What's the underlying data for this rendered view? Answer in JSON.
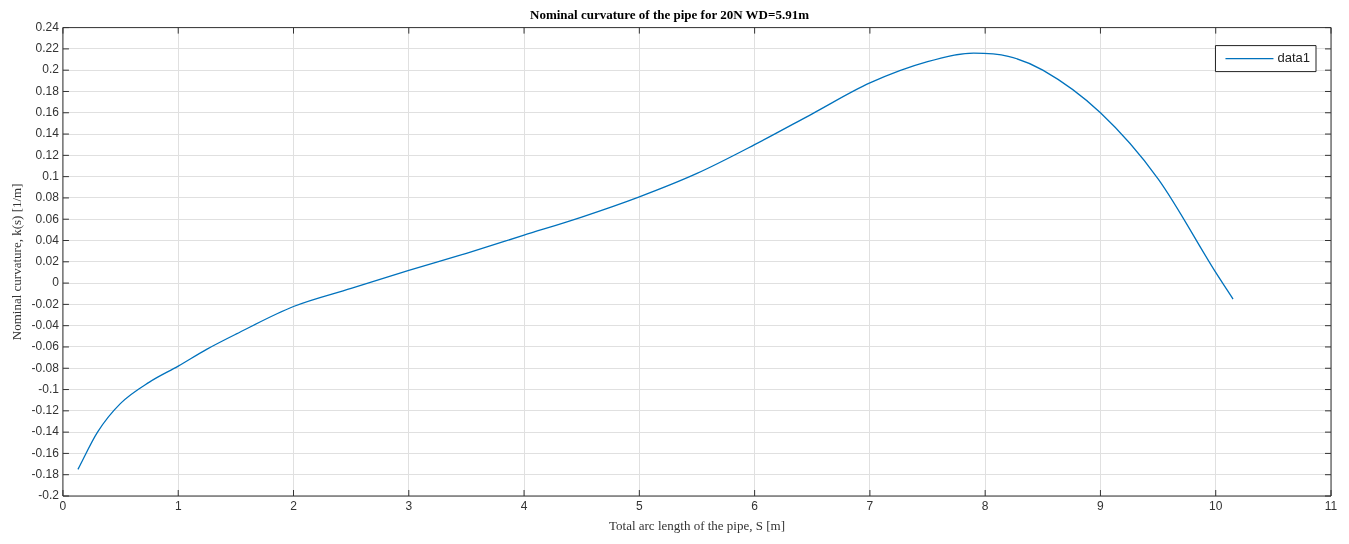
{
  "chart_data": {
    "type": "line",
    "title": "Nominal curvature of the pipe for 20N WD=5.91m",
    "xlabel": "Total arc length of the pipe, S [m]",
    "ylabel": "Nominal curvature, k(s) [1/m]",
    "x": [
      0.13,
      0.3,
      0.5,
      0.75,
      1,
      1.25,
      1.5,
      2,
      2.5,
      3,
      3.5,
      4,
      4.5,
      5,
      5.5,
      6,
      6.5,
      7,
      7.5,
      7.9,
      8.2,
      8.5,
      9,
      9.5,
      10,
      10.15
    ],
    "series": [
      {
        "name": "data1",
        "color": "#0072bd",
        "values": [
          -0.175,
          -0.14,
          -0.113,
          -0.093,
          -0.078,
          -0.062,
          -0.048,
          -0.022,
          -0.005,
          0.012,
          0.028,
          0.045,
          0.062,
          0.081,
          0.103,
          0.13,
          0.159,
          0.188,
          0.208,
          0.216,
          0.213,
          0.2,
          0.16,
          0.098,
          0.01,
          -0.015
        ]
      }
    ],
    "xlim": [
      0,
      11
    ],
    "xticks": [
      0,
      1,
      2,
      3,
      4,
      5,
      6,
      7,
      8,
      9,
      10,
      11
    ],
    "ylim": [
      -0.2,
      0.24
    ],
    "yticks": [
      -0.2,
      -0.18,
      -0.16,
      -0.14,
      -0.12,
      -0.1,
      -0.08,
      -0.06,
      -0.04,
      -0.02,
      0,
      0.02,
      0.04,
      0.06,
      0.08,
      0.1,
      0.12,
      0.14,
      0.16,
      0.18,
      0.2,
      0.22,
      0.24
    ],
    "grid": true,
    "legend": "top right",
    "marker": "none",
    "line_style": "solid"
  }
}
